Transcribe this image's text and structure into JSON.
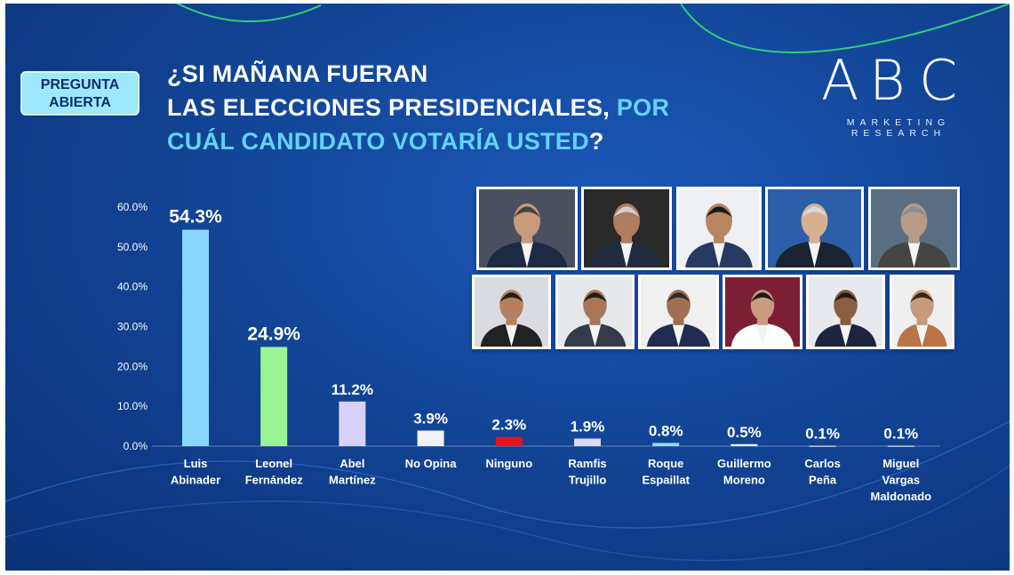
{
  "tag": {
    "line1": "PREGUNTA",
    "line2": "ABIERTA"
  },
  "title": {
    "line1": "¿SI MAÑANA FUERAN",
    "line2a": "LAS ELECCIONES PRESIDENCIALES, ",
    "line2b": "POR",
    "line3a": "CUÁL CANDIDATO VOTARÍA USTED",
    "line3b": "?"
  },
  "logo": {
    "l1": "A",
    "l2": "B",
    "l3": "C",
    "sub1": "MARKETING",
    "sub2": "RESEARCH"
  },
  "colors": {
    "accent": "#63d3f8",
    "tag_bg": "#9ee8fb"
  },
  "chart_data": {
    "type": "bar",
    "title": "¿SI MAÑANA FUERAN LAS ELECCIONES PRESIDENCIALES, POR CUÁL CANDIDATO VOTARÍA USTED?",
    "xlabel": "",
    "ylabel": "",
    "ylim": [
      0,
      60
    ],
    "yticks": [
      "60.0%",
      "50.0%",
      "40.0%",
      "30.0%",
      "20.0%",
      "10.0%",
      "0.0%"
    ],
    "ytick_values": [
      60,
      50,
      40,
      30,
      20,
      10,
      0
    ],
    "grid": false,
    "categories": [
      [
        "Luis",
        "Abinader"
      ],
      [
        "Leonel",
        "Fernández"
      ],
      [
        "Abel",
        "Martínez"
      ],
      [
        "No Opina"
      ],
      [
        "Ninguno"
      ],
      [
        "Ramfis",
        "Trujillo"
      ],
      [
        "Roque",
        "Espaillat"
      ],
      [
        "Guillermo",
        "Moreno"
      ],
      [
        "Carlos",
        "Peña"
      ],
      [
        "Miguel",
        "Vargas",
        "Maldonado"
      ]
    ],
    "values": [
      54.3,
      24.9,
      11.2,
      3.9,
      2.3,
      1.9,
      0.8,
      0.5,
      0.1,
      0.1
    ],
    "value_labels": [
      "54.3%",
      "24.9%",
      "11.2%",
      "3.9%",
      "2.3%",
      "1.9%",
      "0.8%",
      "0.5%",
      "0.1%",
      "0.1%"
    ],
    "colors": [
      "#8ad7fb",
      "#9bf493",
      "#d8d2f8",
      "#f2f2f2",
      "#e8121c",
      "#ded9f5",
      "#93dcfa",
      "#eef5fb",
      "#e8e8e8",
      "#e8e8e8"
    ]
  },
  "photos": [
    {
      "name": "candidate-photo-1",
      "bg": "#4a5060",
      "skin": "#c99a7c",
      "suit": "#1d2a45",
      "hair": "#444444"
    },
    {
      "name": "candidate-photo-2",
      "bg": "#2a2a2a",
      "skin": "#b07c5e",
      "suit": "#222b40",
      "hair": "#cfcfcf"
    },
    {
      "name": "candidate-photo-3",
      "bg": "#eef0f4",
      "skin": "#b7855f",
      "suit": "#273a63",
      "hair": "#1a1a1a"
    },
    {
      "name": "candidate-photo-4",
      "bg": "#2b5ea8",
      "skin": "#d7b092",
      "suit": "#1b2232",
      "hair": "#d9d9d9"
    },
    {
      "name": "candidate-photo-5",
      "bg": "#5a6e82",
      "skin": "#b79a88",
      "suit": "#444444",
      "hair": "#8c8c8c"
    },
    {
      "name": "candidate-photo-6",
      "bg": "#d9dbe0",
      "skin": "#b5805d",
      "suit": "#222222",
      "hair": "#1e1e1e"
    },
    {
      "name": "candidate-photo-7",
      "bg": "#e6e8ec",
      "skin": "#a77858",
      "suit": "#333a48",
      "hair": "#1d1d1d"
    },
    {
      "name": "candidate-photo-8",
      "bg": "#f0f0f0",
      "skin": "#a06f52",
      "suit": "#1f2e50",
      "hair": "#2a2a2a"
    },
    {
      "name": "candidate-photo-9",
      "bg": "#7c1f35",
      "skin": "#c99a7c",
      "suit": "#ffffff",
      "hair": "#1a1a1a"
    },
    {
      "name": "candidate-photo-10",
      "bg": "#e7e9ee",
      "skin": "#8a5c40",
      "suit": "#1b2540",
      "hair": "#1a1a1a"
    },
    {
      "name": "candidate-photo-11",
      "bg": "#efefef",
      "skin": "#c59b7b",
      "suit": "#b9744a",
      "hair": "#3a2418"
    }
  ]
}
